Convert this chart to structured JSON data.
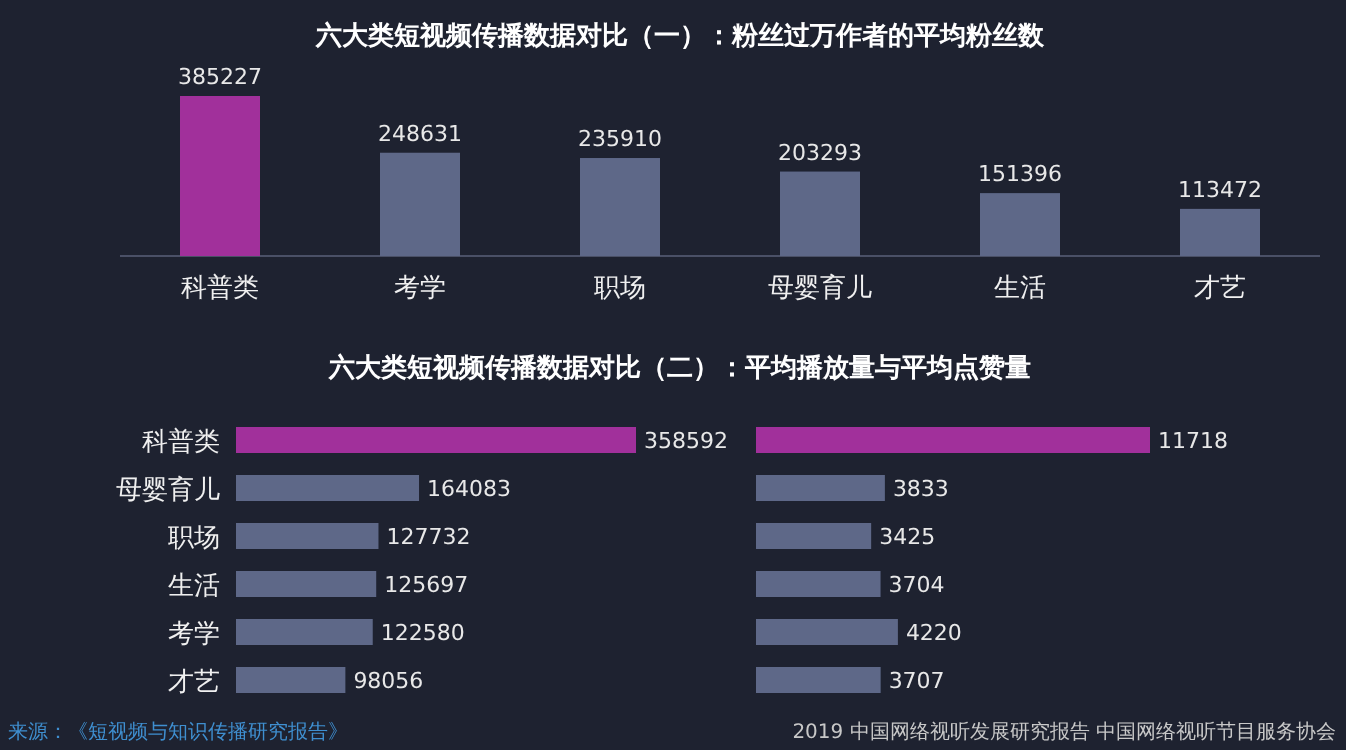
{
  "chart_data": [
    {
      "type": "bar",
      "title": "六大类短视频传播数据对比（一）：粉丝过万作者的平均粉丝数",
      "categories": [
        "科普类",
        "考学",
        "职场",
        "母婴育儿",
        "生活",
        "才艺"
      ],
      "values": [
        385227,
        248631,
        235910,
        203293,
        151396,
        113472
      ],
      "colors": [
        "#a1309b",
        "#5e6888",
        "#5e6888",
        "#5e6888",
        "#5e6888",
        "#5e6888"
      ],
      "data_labels": true
    },
    {
      "type": "bar",
      "orientation": "horizontal",
      "title": "六大类短视频传播数据对比（二）：平均播放量与平均点赞量",
      "categories": [
        "科普类",
        "母婴育儿",
        "职场",
        "生活",
        "考学",
        "才艺"
      ],
      "values": [
        358592,
        164083,
        127732,
        125697,
        122580,
        98056
      ],
      "colors": [
        "#a1309b",
        "#5e6888",
        "#5e6888",
        "#5e6888",
        "#5e6888",
        "#5e6888"
      ],
      "data_labels": true
    },
    {
      "type": "bar",
      "orientation": "horizontal",
      "categories": [
        null,
        null,
        null,
        null,
        null,
        null
      ],
      "values": [
        11718,
        3833,
        3425,
        3704,
        4220,
        3707
      ],
      "colors": [
        "#a1309b",
        "#5e6888",
        "#5e6888",
        "#5e6888",
        "#5e6888",
        "#5e6888"
      ],
      "data_labels": true,
      "annotations": [
        "来源：《短视频与知识传播研究报告》",
        "2019 中国网络视听发展研究报告 中国网络视听节目服务协会"
      ]
    }
  ]
}
